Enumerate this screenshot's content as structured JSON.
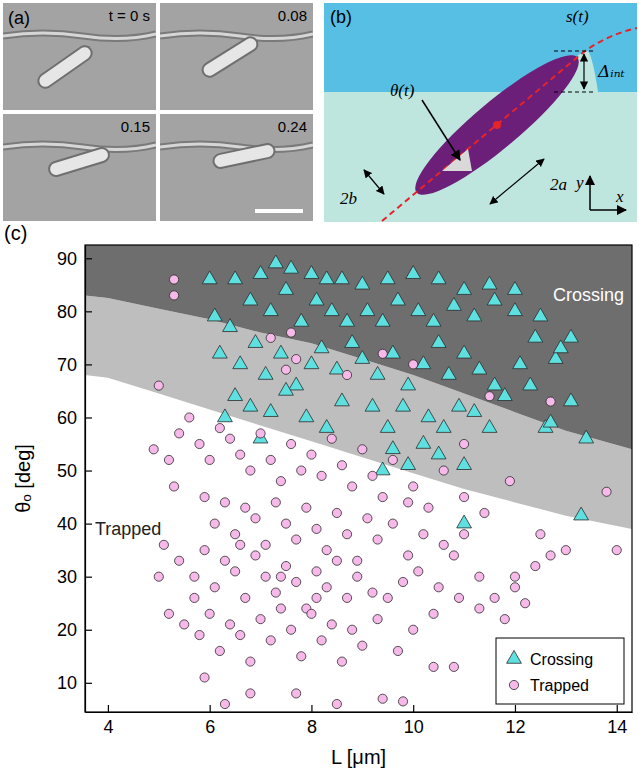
{
  "panels": {
    "a": {
      "label": "(a)",
      "times": [
        "t = 0 s",
        "0.08",
        "0.15",
        "0.24"
      ]
    },
    "b": {
      "label": "(b)",
      "labels": {
        "s": "s(t)",
        "delta": "Δᵢₙₜ",
        "theta": "θ(t)",
        "major": "2a",
        "minor": "2b",
        "y": "y",
        "x": "x"
      }
    }
  },
  "chart_data": {
    "type": "scatter",
    "panel_label": "(c)",
    "x_label": "L [μm]",
    "y_label": "θₒ [deg]",
    "xlim": [
      3.55,
      14.3
    ],
    "ylim": [
      4.5,
      92.5
    ],
    "xticks": [
      4,
      6,
      8,
      10,
      12,
      14
    ],
    "yticks": [
      10,
      20,
      30,
      40,
      50,
      60,
      70,
      80,
      90
    ],
    "legend": "lower right",
    "annotations": [
      "Crossing",
      "Trapped"
    ],
    "regions": {
      "x": [
        3.55,
        4,
        5,
        6,
        7,
        8,
        9,
        10,
        11,
        12,
        13,
        14.3
      ],
      "upper": [
        83,
        82.5,
        80.5,
        78.5,
        76,
        74,
        71,
        68,
        64.5,
        61,
        57.5,
        54
      ],
      "lower": [
        68,
        67.5,
        64.5,
        61.5,
        58.5,
        55.5,
        52.5,
        49.5,
        46.5,
        44,
        41.5,
        39
      ]
    },
    "series": [
      {
        "name": "Crossing",
        "color": "#5fe0e0",
        "marker": "triangle",
        "x": [
          6,
          6.5,
          7,
          7.3,
          7.6,
          8,
          8.3,
          8.6,
          9,
          9.5,
          10,
          10.5,
          11,
          11.5,
          12,
          6.1,
          6.4,
          6.8,
          7.2,
          7.5,
          7.8,
          8.1,
          8.4,
          8.7,
          9.1,
          9.4,
          9.7,
          10.1,
          10.4,
          10.8,
          11.2,
          11.6,
          12,
          12.5,
          13.1,
          12.8,
          6.2,
          6.6,
          6.9,
          7.1,
          7.4,
          7.7,
          8,
          8.2,
          8.5,
          8.8,
          9,
          9.3,
          9.6,
          9.9,
          10.2,
          10.5,
          10.7,
          11,
          11.3,
          11.6,
          12.1,
          12.4,
          12.9,
          6.5,
          6.8,
          7.2,
          7.5,
          7.9,
          8.6,
          9.2,
          9.5,
          9.8,
          10.3,
          10.6,
          10.9,
          11.2,
          11.5,
          11.8,
          12.3,
          12.6,
          13.1,
          13.4,
          9.6,
          9.9,
          10.2,
          10.5,
          11,
          9.4,
          13.3,
          11,
          6.3,
          7,
          8.3,
          12.7
        ],
        "values": [
          86,
          86,
          87,
          89,
          88,
          87,
          86,
          86,
          85,
          86,
          87,
          86,
          84,
          85,
          84,
          79,
          77,
          82,
          80,
          84,
          78,
          82,
          80,
          78,
          80,
          78,
          82,
          80,
          78,
          81,
          79,
          82,
          80,
          79,
          75,
          71,
          72,
          70,
          74,
          68,
          72,
          66,
          70,
          73,
          69,
          74,
          71,
          68,
          72,
          66,
          70,
          74,
          68,
          72,
          69,
          66,
          70,
          75,
          73,
          64,
          62,
          61,
          65,
          60,
          63,
          62,
          58,
          62,
          60,
          58,
          62,
          61,
          58,
          64,
          66,
          58,
          63,
          56,
          54,
          51,
          55,
          53,
          51,
          50,
          41.5,
          40,
          60,
          56,
          58,
          59
        ]
      },
      {
        "name": "Trapped",
        "color": "#f7b9ea",
        "marker": "circle",
        "x": [
          5.3,
          5.3,
          7.6,
          7.2,
          7.7,
          7.5,
          8.7,
          9.4,
          10,
          11.5,
          12.7,
          11,
          13.8,
          14,
          12.5,
          11.9,
          5,
          4.9,
          5.2,
          5.4,
          5.6,
          5.8,
          6,
          6.2,
          6.4,
          6.6,
          6.8,
          7,
          7.2,
          7.4,
          7.6,
          7.8,
          8,
          8.2,
          8.4,
          8.6,
          8.8,
          9,
          9.2,
          9.4,
          9.6,
          10,
          10.3,
          10.6,
          11,
          11.4,
          5.3,
          5.9,
          6.1,
          6.3,
          6.5,
          6.7,
          6.9,
          7.1,
          7.3,
          7.5,
          7.7,
          7.9,
          8.1,
          8.3,
          8.5,
          8.7,
          8.9,
          9.1,
          9.3,
          9.6,
          9.9,
          10.2,
          10.6,
          11,
          5.1,
          5.4,
          5.7,
          5.9,
          6.1,
          6.3,
          6.5,
          6.7,
          6.9,
          7.1,
          7.3,
          7.5,
          7.7,
          7.9,
          8.1,
          8.3,
          8.5,
          8.7,
          8.9,
          9.2,
          9.5,
          9.8,
          10.1,
          10.5,
          10.9,
          11.3,
          11.6,
          12,
          12.4,
          12.7,
          13,
          5,
          5.2,
          5.5,
          5.8,
          6,
          6.2,
          6.4,
          6.6,
          6.8,
          7,
          7.2,
          7.4,
          7.6,
          7.8,
          8,
          8.2,
          8.4,
          8.6,
          8.8,
          9,
          9.3,
          9.7,
          10,
          10.4,
          10.8,
          11.3,
          11.8,
          12.2,
          5.9,
          6.3,
          6.8,
          7.7,
          8.5,
          9.4,
          9.8,
          10.4,
          8.1,
          7.4,
          6.6,
          5.7,
          9.9,
          10.8,
          12
        ],
        "values": [
          86,
          83,
          76,
          75,
          71,
          69,
          68,
          72,
          70,
          64,
          63,
          55,
          46,
          35,
          38,
          48,
          66,
          54,
          52,
          57,
          60,
          55,
          52,
          58,
          56,
          53,
          50,
          57,
          52,
          48,
          55,
          50,
          53,
          49,
          56,
          51,
          47,
          54,
          49,
          45,
          52,
          47,
          43,
          50,
          45,
          42,
          47,
          45,
          40,
          44,
          38,
          43,
          41,
          36,
          44,
          40,
          37,
          43,
          39,
          35,
          42,
          38,
          33,
          41,
          37,
          40,
          34,
          38,
          36,
          38,
          36,
          33,
          30,
          35,
          28,
          33,
          31,
          26,
          34,
          30,
          27,
          32,
          29,
          24,
          31,
          28,
          33,
          26,
          30,
          27,
          26,
          29,
          31,
          28,
          26,
          30,
          26,
          30,
          32,
          34,
          35,
          30,
          23,
          21,
          19,
          23,
          16,
          21,
          19,
          14,
          22,
          18,
          24,
          20,
          15,
          23,
          18,
          21,
          14,
          20,
          17,
          22,
          16,
          20,
          23,
          13,
          24,
          22,
          25,
          11,
          6,
          8,
          8,
          6,
          7,
          6.5,
          13,
          26,
          30,
          36,
          26,
          44,
          34,
          28
        ]
      }
    ]
  }
}
